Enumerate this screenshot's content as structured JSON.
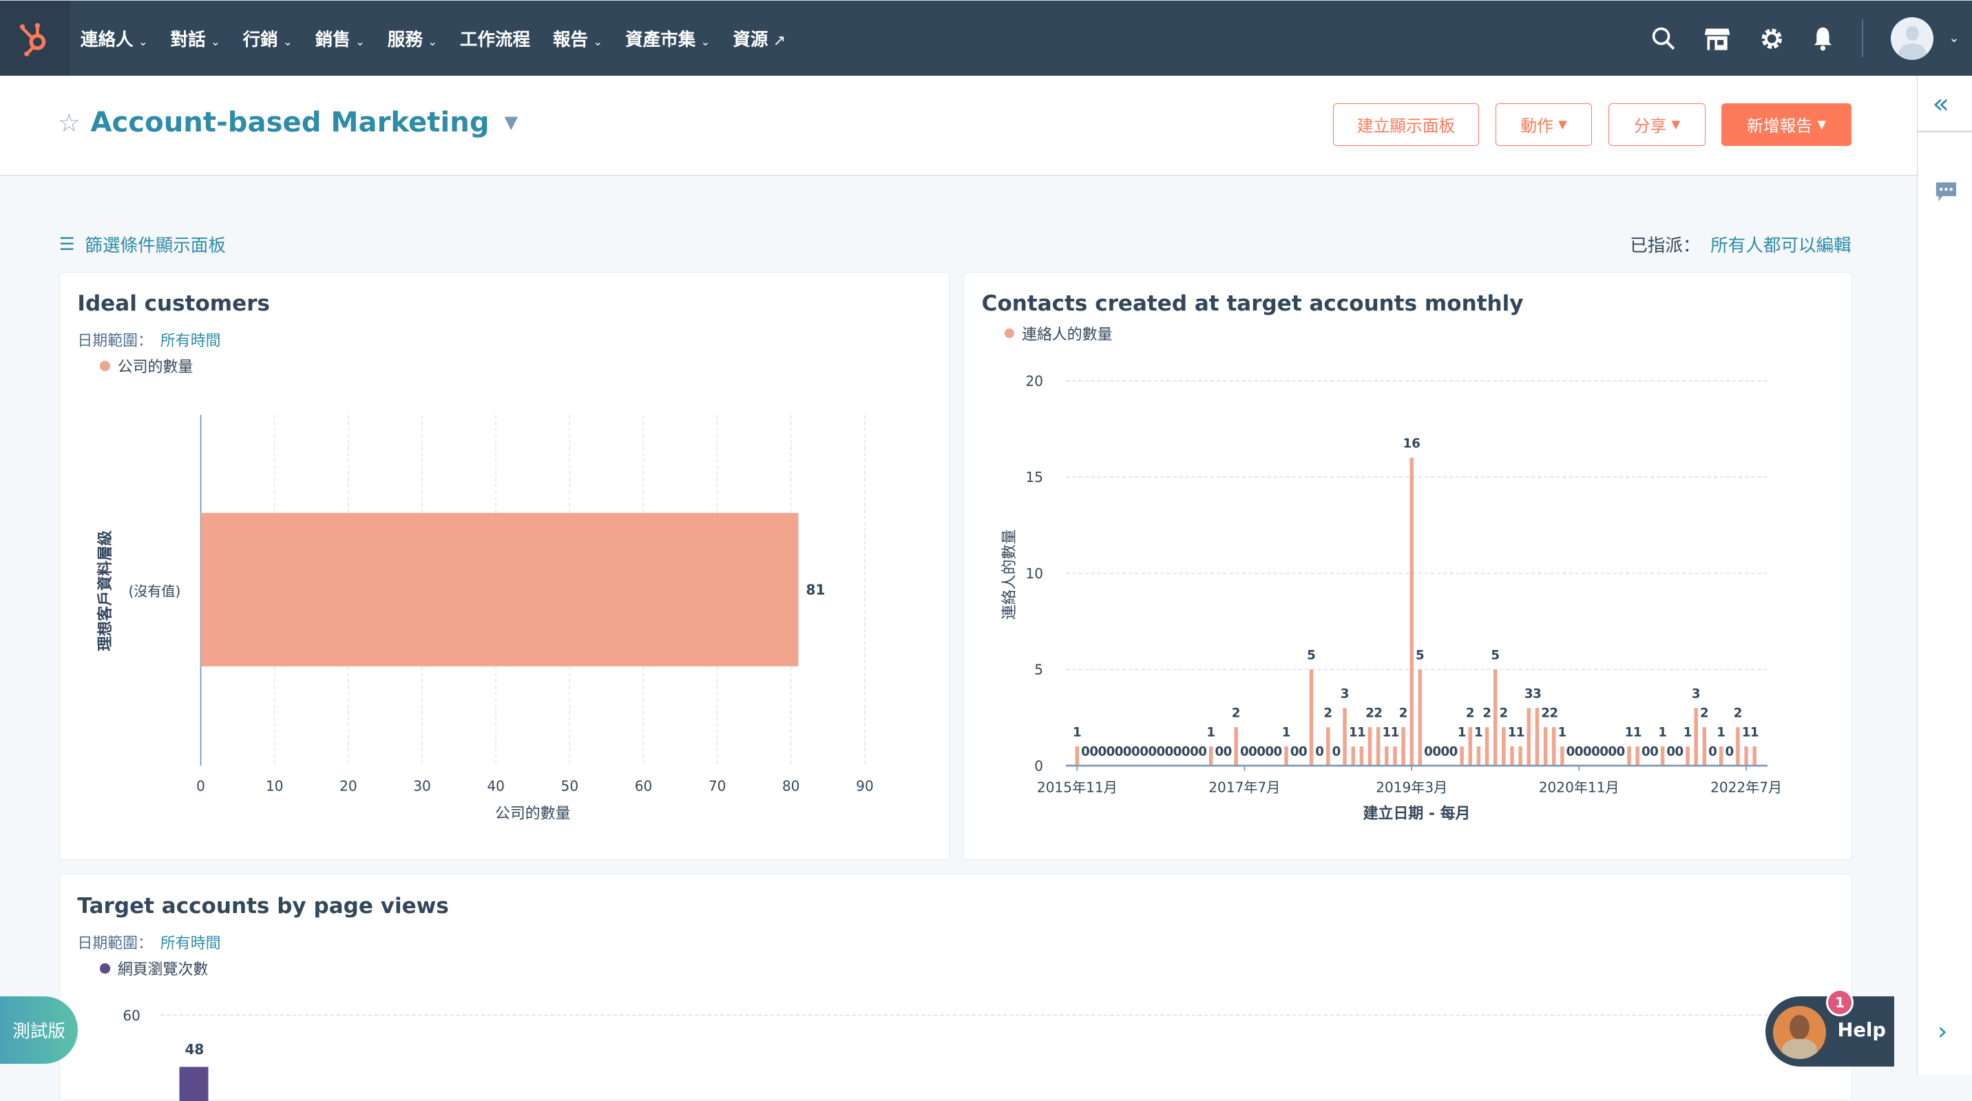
{
  "nav": {
    "items": [
      {
        "label": "連絡人",
        "dropdown": true
      },
      {
        "label": "對話",
        "dropdown": true
      },
      {
        "label": "行銷",
        "dropdown": true
      },
      {
        "label": "銷售",
        "dropdown": true
      },
      {
        "label": "服務",
        "dropdown": true
      },
      {
        "label": "工作流程",
        "dropdown": false
      },
      {
        "label": "報告",
        "dropdown": true
      },
      {
        "label": "資產市集",
        "dropdown": true
      },
      {
        "label": "資源",
        "external": true
      }
    ],
    "brand_color": "#ff7a59"
  },
  "header": {
    "title": "Account-based Marketing",
    "buttons": {
      "create_dashboard": "建立顯示面板",
      "actions": "動作",
      "share": "分享",
      "add_report": "新增報告"
    }
  },
  "toolbar": {
    "filter_label": "篩選條件顯示面板",
    "assigned_label": "已指派：",
    "assigned_value": "所有人都可以編輯"
  },
  "cards": [
    {
      "title": "Ideal customers",
      "date_range_label": "日期範圍：",
      "date_range_value": "所有時間",
      "legend": "公司的數量"
    },
    {
      "title": "Contacts created at target accounts monthly",
      "legend": "連絡人的數量"
    },
    {
      "title": "Target accounts by page views",
      "date_range_label": "日期範圍：",
      "date_range_value": "所有時間",
      "legend": "網頁瀏覽次數"
    }
  ],
  "chart_data": [
    {
      "type": "bar",
      "orientation": "horizontal",
      "categories": [
        "(沒有值)"
      ],
      "values": [
        81
      ],
      "xlabel": "公司的數量",
      "ylabel": "理想客戶資料層級",
      "xlim": [
        0,
        90
      ],
      "xticks": [
        0,
        10,
        20,
        30,
        40,
        50,
        60,
        70,
        80,
        90
      ],
      "color": "#f2a58e",
      "grid": true
    },
    {
      "type": "bar",
      "start_month": "2015年11月",
      "values": [
        1,
        0,
        0,
        0,
        0,
        0,
        0,
        0,
        0,
        0,
        0,
        0,
        0,
        0,
        0,
        0,
        1,
        0,
        0,
        2,
        0,
        0,
        0,
        0,
        0,
        1,
        0,
        0,
        5,
        0,
        2,
        0,
        3,
        1,
        1,
        2,
        2,
        1,
        1,
        2,
        16,
        5,
        0,
        0,
        0,
        0,
        1,
        2,
        1,
        2,
        5,
        2,
        1,
        1,
        3,
        3,
        2,
        2,
        1,
        0,
        0,
        0,
        0,
        0,
        0,
        0,
        1,
        1,
        0,
        0,
        1,
        0,
        0,
        1,
        3,
        2,
        0,
        1,
        0,
        2,
        1,
        1
      ],
      "xticks": [
        "2015年11月",
        "2017年7月",
        "2019年3月",
        "2020年11月",
        "2022年7月"
      ],
      "xlabel": "建立日期 - 每月",
      "ylabel": "連絡人的數量",
      "ylim": [
        0,
        20
      ],
      "yticks": [
        0,
        5,
        10,
        15,
        20
      ],
      "color": "#f2a58e",
      "grid": true
    },
    {
      "type": "bar",
      "values_visible": [
        48
      ],
      "yticks_visible": [
        60
      ],
      "color": "#5c4b8a"
    }
  ],
  "beta_label": "測試版",
  "help": {
    "label": "Help",
    "badge": "1"
  }
}
